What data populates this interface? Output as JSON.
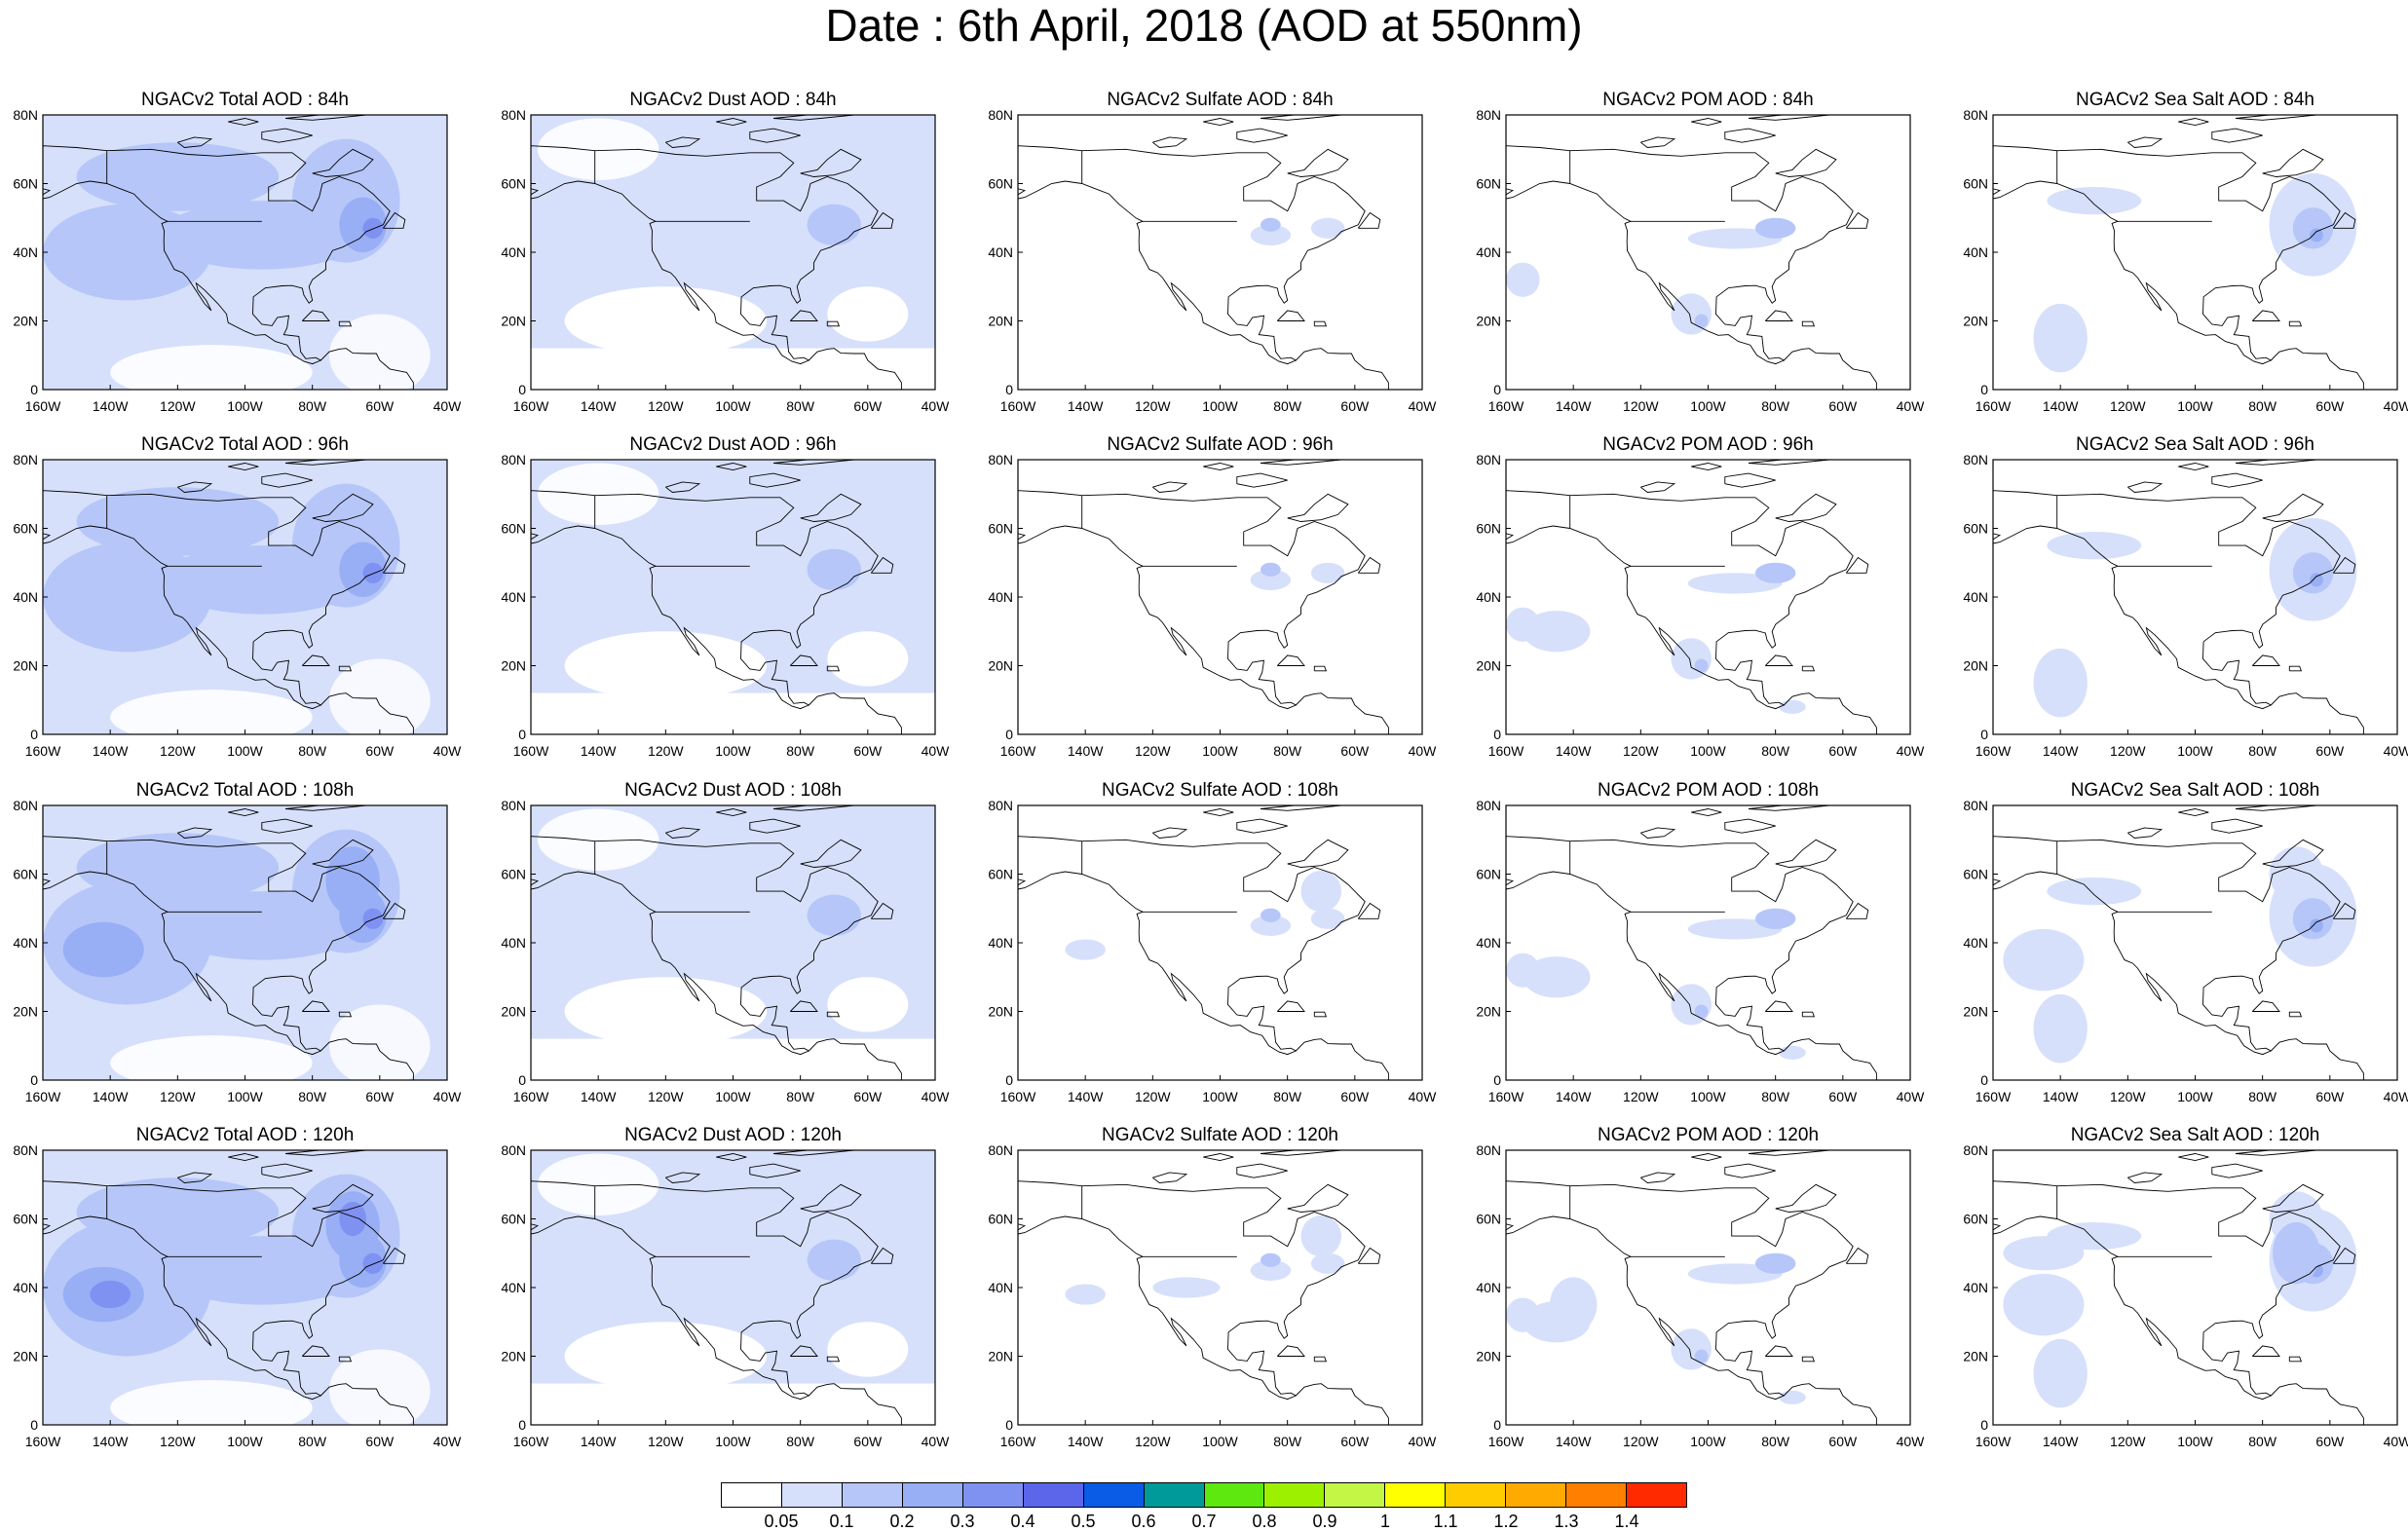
{
  "title": "Date : 6th April, 2018 (AOD at 550nm)",
  "rows": [
    [
      "NGACv2 Total AOD : 84h",
      "NGACv2 Dust AOD : 84h",
      "NGACv2 Sulfate AOD : 84h",
      "NGACv2 POM AOD : 84h",
      "NGACv2 Sea Salt AOD : 84h"
    ],
    [
      "NGACv2 Total AOD : 96h",
      "NGACv2 Dust AOD : 96h",
      "NGACv2 Sulfate AOD : 96h",
      "NGACv2 POM AOD : 96h",
      "NGACv2 Sea Salt AOD : 96h"
    ],
    [
      "NGACv2 Total AOD : 108h",
      "NGACv2 Dust AOD : 108h",
      "NGACv2 Sulfate AOD : 108h",
      "NGACv2 POM AOD : 108h",
      "NGACv2 Sea Salt AOD : 108h"
    ],
    [
      "NGACv2 Total AOD : 120h",
      "NGACv2 Dust AOD : 120h",
      "NGACv2 Sulfate AOD : 120h",
      "NGACv2 POM AOD : 120h",
      "NGACv2 Sea Salt  AOD : 120h"
    ]
  ],
  "lat_ticks": [
    "80N",
    "60N",
    "40N",
    "20N",
    "0"
  ],
  "lon_ticks": [
    "160W",
    "140W",
    "120W",
    "100W",
    "80W",
    "60W",
    "40W"
  ],
  "colorbar": {
    "colors": [
      "#ffffff",
      "#d6e0fb",
      "#b6c6f8",
      "#98aef5",
      "#7f91f1",
      "#5b66ea",
      "#0a5be6",
      "#009a9a",
      "#5fe810",
      "#9df000",
      "#c4f646",
      "#ffff00",
      "#ffcc00",
      "#ffaa00",
      "#ff7f00",
      "#ff2a00"
    ],
    "labels": [
      "0.05",
      "0.1",
      "0.2",
      "0.3",
      "0.4",
      "0.5",
      "0.6",
      "0.7",
      "0.8",
      "0.9",
      "1",
      "1.1",
      "1.2",
      "1.3",
      "1.4"
    ]
  }
}
